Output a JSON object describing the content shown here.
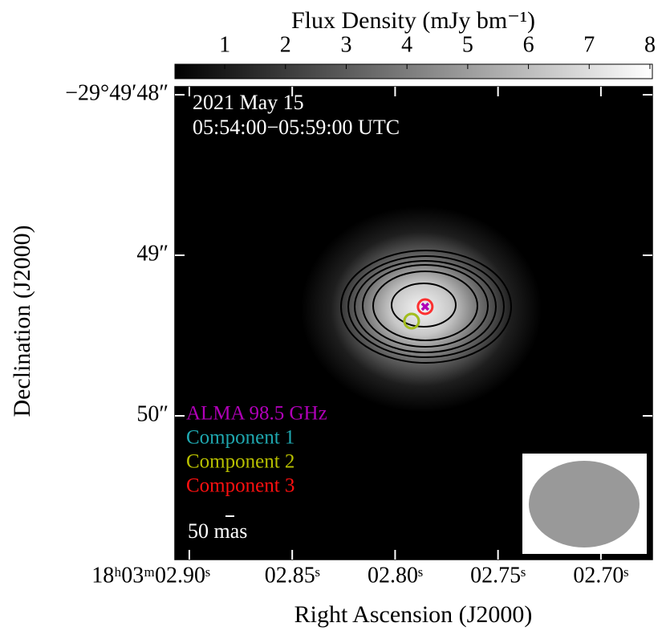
{
  "chart_data": {
    "type": "scatter",
    "colorbar_label": "Flux  Density (mJy bm⁻¹)",
    "clim": [
      0.18,
      8.04
    ],
    "cticks": [
      1,
      2,
      3,
      4,
      5,
      6,
      7,
      8
    ],
    "xlabel": "Right Ascension (J2000)",
    "ylabel": "Declination (J2000)",
    "xlim": [
      2.907,
      2.675
    ],
    "xticks": [
      {
        "value": 2.9,
        "label": "18ʰ03ᵐ02.90ˢ"
      },
      {
        "value": 2.85,
        "label": "02.85ˢ"
      },
      {
        "value": 2.8,
        "label": "02.80ˢ"
      },
      {
        "value": 2.75,
        "label": "02.75ˢ"
      },
      {
        "value": 2.7,
        "label": "02.70ˢ"
      }
    ],
    "ylim": [
      47.95,
      50.895
    ],
    "yticks": [
      {
        "value": 48,
        "label": "−29°49′48″"
      },
      {
        "value": 49,
        "label": "49″"
      },
      {
        "value": 50,
        "label": "50″"
      }
    ],
    "annotations": [
      "2021 May 15",
      "05:54:00−05:59:00 UTC"
    ],
    "scale_bar_label": "50 mas",
    "legend": "lower left",
    "series": [
      {
        "name": "ALMA 98.5 GHz",
        "color": "#b000b8",
        "marker": "x",
        "x": [
          2.7854
        ],
        "y": [
          49.32
        ]
      },
      {
        "name": "Component 1",
        "color": "#1fa8b0",
        "marker": "circle",
        "x": [
          2.792
        ],
        "y": [
          49.41
        ]
      },
      {
        "name": "Component 2",
        "color": "#b8c000",
        "marker": "circle",
        "x": [
          2.792
        ],
        "y": [
          49.41
        ]
      },
      {
        "name": "Component 3",
        "color": "#ff1010",
        "marker": "circle",
        "x": [
          2.7854
        ],
        "y": [
          49.32
        ]
      }
    ]
  }
}
